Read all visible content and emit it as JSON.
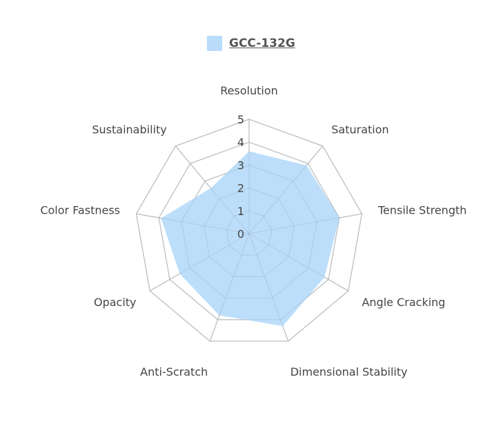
{
  "chart_data": {
    "type": "radar",
    "axes": [
      "Resolution",
      "Saturation",
      "Tensile Strength",
      "Angle Cracking",
      "Dimensional Stability",
      "Anti-Scratch",
      "Opacity",
      "Color Fastness",
      "Sustainability"
    ],
    "ticks": [
      "0",
      "1",
      "2",
      "3",
      "4",
      "5"
    ],
    "rmax": 5,
    "series": [
      {
        "name": "GCC-132G",
        "values": [
          3.6,
          3.9,
          4.0,
          3.8,
          4.3,
          3.8,
          3.5,
          3.9,
          2.6
        ],
        "color": "#b8dcfa"
      }
    ],
    "legend": {
      "position": "top"
    },
    "grid": true,
    "grid_color": "#c8c8c8"
  }
}
